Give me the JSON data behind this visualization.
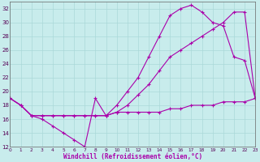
{
  "xlabel": "Windchill (Refroidissement éolien,°C)",
  "bg_color": "#c8ecec",
  "line_color": "#aa00aa",
  "grid_color": "#aad8d8",
  "xlim": [
    0,
    23
  ],
  "ylim": [
    12,
    33
  ],
  "xticks": [
    0,
    1,
    2,
    3,
    4,
    5,
    6,
    7,
    8,
    9,
    10,
    11,
    12,
    13,
    14,
    15,
    16,
    17,
    18,
    19,
    20,
    21,
    22,
    23
  ],
  "yticks": [
    12,
    14,
    16,
    18,
    20,
    22,
    24,
    26,
    28,
    30,
    32
  ],
  "line1_x": [
    0,
    1,
    2,
    3,
    4,
    5,
    6,
    7,
    8,
    9,
    10,
    11,
    12,
    13,
    14,
    15,
    16,
    17,
    18,
    19,
    20,
    21,
    22,
    23
  ],
  "line1_y": [
    19,
    18,
    16.5,
    16,
    15,
    14,
    13,
    12,
    19,
    16.5,
    17,
    17,
    17,
    17,
    17,
    17.5,
    17.5,
    18,
    18,
    18,
    18.5,
    18.5,
    18.5,
    19
  ],
  "line2_x": [
    0,
    1,
    2,
    3,
    4,
    5,
    6,
    7,
    8,
    9,
    10,
    11,
    12,
    13,
    14,
    15,
    16,
    17,
    18,
    19,
    20,
    21,
    22,
    23
  ],
  "line2_y": [
    19,
    18,
    16.5,
    16.5,
    16.5,
    16.5,
    16.5,
    16.5,
    16.5,
    16.5,
    17,
    18,
    19.5,
    21,
    23,
    25,
    26,
    27,
    28,
    29,
    30,
    31.5,
    31.5,
    19
  ],
  "line3_x": [
    0,
    1,
    2,
    3,
    4,
    5,
    6,
    7,
    8,
    9,
    10,
    11,
    12,
    13,
    14,
    15,
    16,
    17,
    18,
    19,
    20,
    21,
    22,
    23
  ],
  "line3_y": [
    19,
    18,
    16.5,
    16.5,
    16.5,
    16.5,
    16.5,
    16.5,
    16.5,
    16.5,
    18,
    20,
    22,
    25,
    28,
    31,
    32,
    32.5,
    31.5,
    30,
    29.5,
    25,
    24.5,
    19
  ]
}
